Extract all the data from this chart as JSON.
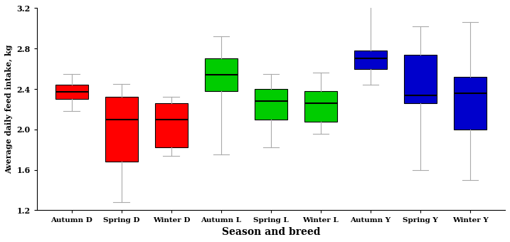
{
  "categories": [
    "Autumn D",
    "Spring D",
    "Winter D",
    "Autumn L",
    "Spring L",
    "Winter L",
    "Autumn Y",
    "Spring Y",
    "Winter Y"
  ],
  "colors": [
    "#ff0000",
    "#ff0000",
    "#ff0000",
    "#00cc00",
    "#00cc00",
    "#00cc00",
    "#0000cc",
    "#0000cc",
    "#0000cc"
  ],
  "boxes": [
    {
      "whislo": 2.18,
      "q1": 2.3,
      "med": 2.37,
      "q3": 2.44,
      "whishi": 2.55
    },
    {
      "whislo": 1.28,
      "q1": 1.68,
      "med": 2.1,
      "q3": 2.32,
      "whishi": 2.45
    },
    {
      "whislo": 1.74,
      "q1": 1.82,
      "med": 2.1,
      "q3": 2.26,
      "whishi": 2.32
    },
    {
      "whislo": 1.75,
      "q1": 2.38,
      "med": 2.54,
      "q3": 2.7,
      "whishi": 2.92
    },
    {
      "whislo": 1.82,
      "q1": 2.1,
      "med": 2.28,
      "q3": 2.4,
      "whishi": 2.55
    },
    {
      "whislo": 1.96,
      "q1": 2.08,
      "med": 2.26,
      "q3": 2.38,
      "whishi": 2.56
    },
    {
      "whislo": 2.44,
      "q1": 2.6,
      "med": 2.7,
      "q3": 2.78,
      "whishi": 3.22
    },
    {
      "whislo": 1.6,
      "q1": 2.26,
      "med": 2.34,
      "q3": 2.74,
      "whishi": 3.02
    },
    {
      "whislo": 1.5,
      "q1": 2.0,
      "med": 2.36,
      "q3": 2.52,
      "whishi": 3.06
    }
  ],
  "ylabel": "Average daily feed intake, kg",
  "xlabel": "Season and breed",
  "ylim": [
    1.2,
    3.2
  ],
  "yticks": [
    1.2,
    1.6,
    2.0,
    2.4,
    2.8,
    3.2
  ],
  "background_color": "#ffffff",
  "figsize": [
    7.17,
    3.4
  ],
  "dpi": 100,
  "box_width": 0.65
}
